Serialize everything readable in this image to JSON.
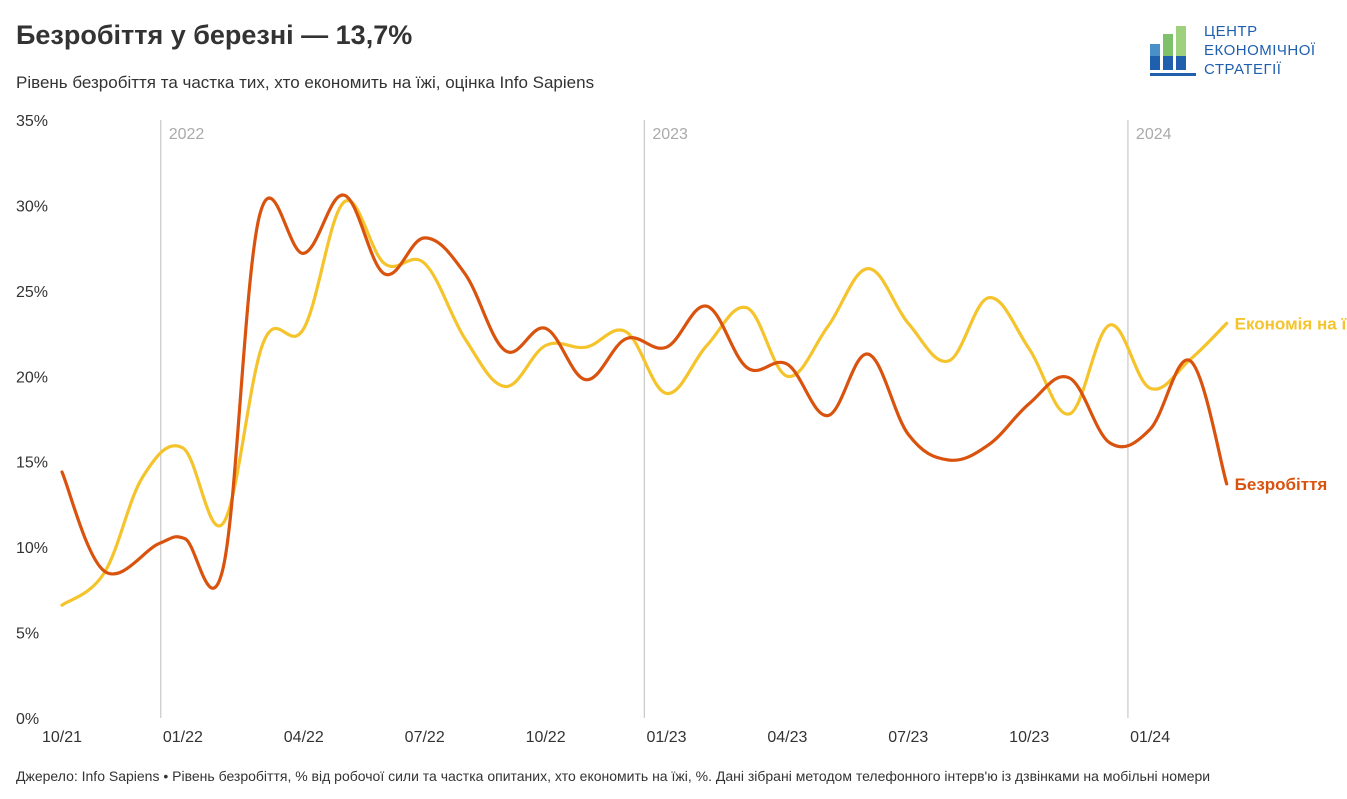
{
  "title": "Безробіття у березні — 13,7%",
  "subtitle": "Рівень безробіття та частка тих, хто економить на їжі, оцінка Info Sapiens",
  "logo": {
    "line1": "ЦЕНТР",
    "line2": "ЕКОНОМІЧНОЇ",
    "line3": "СТРАТЕГІЇ"
  },
  "footer": "Джерело: Info Sapiens • Рівень безробіття, % від робочої сили та частка опитаних, хто економить на їжі, %. Дані зібрані методом телефонного інтерв'ю із дзвінками на мобільні номери",
  "colors": {
    "unemployment": "#d9530e",
    "savings": "#f5c42c",
    "grid": "#c8c8c8",
    "year_text": "#aaaaaa"
  },
  "chart_data": {
    "type": "line",
    "xlabel": "",
    "ylabel": "",
    "ylim": [
      0,
      35
    ],
    "y_ticks": [
      "0%",
      "5%",
      "10%",
      "15%",
      "20%",
      "25%",
      "30%",
      "35%"
    ],
    "x_ticks": [
      {
        "label": "10/21",
        "x": 0
      },
      {
        "label": "01/22",
        "x": 3
      },
      {
        "label": "04/22",
        "x": 6
      },
      {
        "label": "07/22",
        "x": 9
      },
      {
        "label": "10/22",
        "x": 12
      },
      {
        "label": "01/23",
        "x": 15
      },
      {
        "label": "04/23",
        "x": 18
      },
      {
        "label": "07/23",
        "x": 21
      },
      {
        "label": "10/23",
        "x": 24
      },
      {
        "label": "01/24",
        "x": 27
      }
    ],
    "year_markers": [
      {
        "label": "2022",
        "x": 2.45
      },
      {
        "label": "2023",
        "x": 14.45
      },
      {
        "label": "2024",
        "x": 26.45
      }
    ],
    "series": [
      {
        "name": "Безробіття",
        "key": "unemployment",
        "points": [
          [
            0,
            14.4
          ],
          [
            1.05,
            8.6
          ],
          [
            2.4,
            10.2
          ],
          [
            3.05,
            10.5
          ],
          [
            4.0,
            8.8
          ],
          [
            4.9,
            29.4
          ],
          [
            6.0,
            27.2
          ],
          [
            7.0,
            30.6
          ],
          [
            8.0,
            26.0
          ],
          [
            9.0,
            28.1
          ],
          [
            10.0,
            26.0
          ],
          [
            11.0,
            21.5
          ],
          [
            12.0,
            22.8
          ],
          [
            13.0,
            19.8
          ],
          [
            14.0,
            22.2
          ],
          [
            15.0,
            21.7
          ],
          [
            16.0,
            24.1
          ],
          [
            17.0,
            20.5
          ],
          [
            18.0,
            20.7
          ],
          [
            19.0,
            17.7
          ],
          [
            20.0,
            21.3
          ],
          [
            21.0,
            16.6
          ],
          [
            22.0,
            15.1
          ],
          [
            23.0,
            16.0
          ],
          [
            24.0,
            18.4
          ],
          [
            25.0,
            19.9
          ],
          [
            26.0,
            16.1
          ],
          [
            27.0,
            16.9
          ],
          [
            28.0,
            20.9
          ],
          [
            28.9,
            13.7
          ]
        ]
      },
      {
        "name": "Економія на ї",
        "key": "savings",
        "points": [
          [
            0,
            6.6
          ],
          [
            1.05,
            8.5
          ],
          [
            2.0,
            14.1
          ],
          [
            3.0,
            15.8
          ],
          [
            4.0,
            11.4
          ],
          [
            5.0,
            22.0
          ],
          [
            6.0,
            22.8
          ],
          [
            7.0,
            30.2
          ],
          [
            8.0,
            26.6
          ],
          [
            9.0,
            26.6
          ],
          [
            10.0,
            22.2
          ],
          [
            11.0,
            19.4
          ],
          [
            12.0,
            21.8
          ],
          [
            13.0,
            21.7
          ],
          [
            14.0,
            22.6
          ],
          [
            15.0,
            19.0
          ],
          [
            16.0,
            21.8
          ],
          [
            17.0,
            24.0
          ],
          [
            18.0,
            20.0
          ],
          [
            19.0,
            22.9
          ],
          [
            20.0,
            26.3
          ],
          [
            21.0,
            23.1
          ],
          [
            22.0,
            20.9
          ],
          [
            23.0,
            24.6
          ],
          [
            24.0,
            21.6
          ],
          [
            25.0,
            17.8
          ],
          [
            26.0,
            23.0
          ],
          [
            27.0,
            19.3
          ],
          [
            28.0,
            21.0
          ],
          [
            28.9,
            23.1
          ]
        ]
      }
    ]
  }
}
